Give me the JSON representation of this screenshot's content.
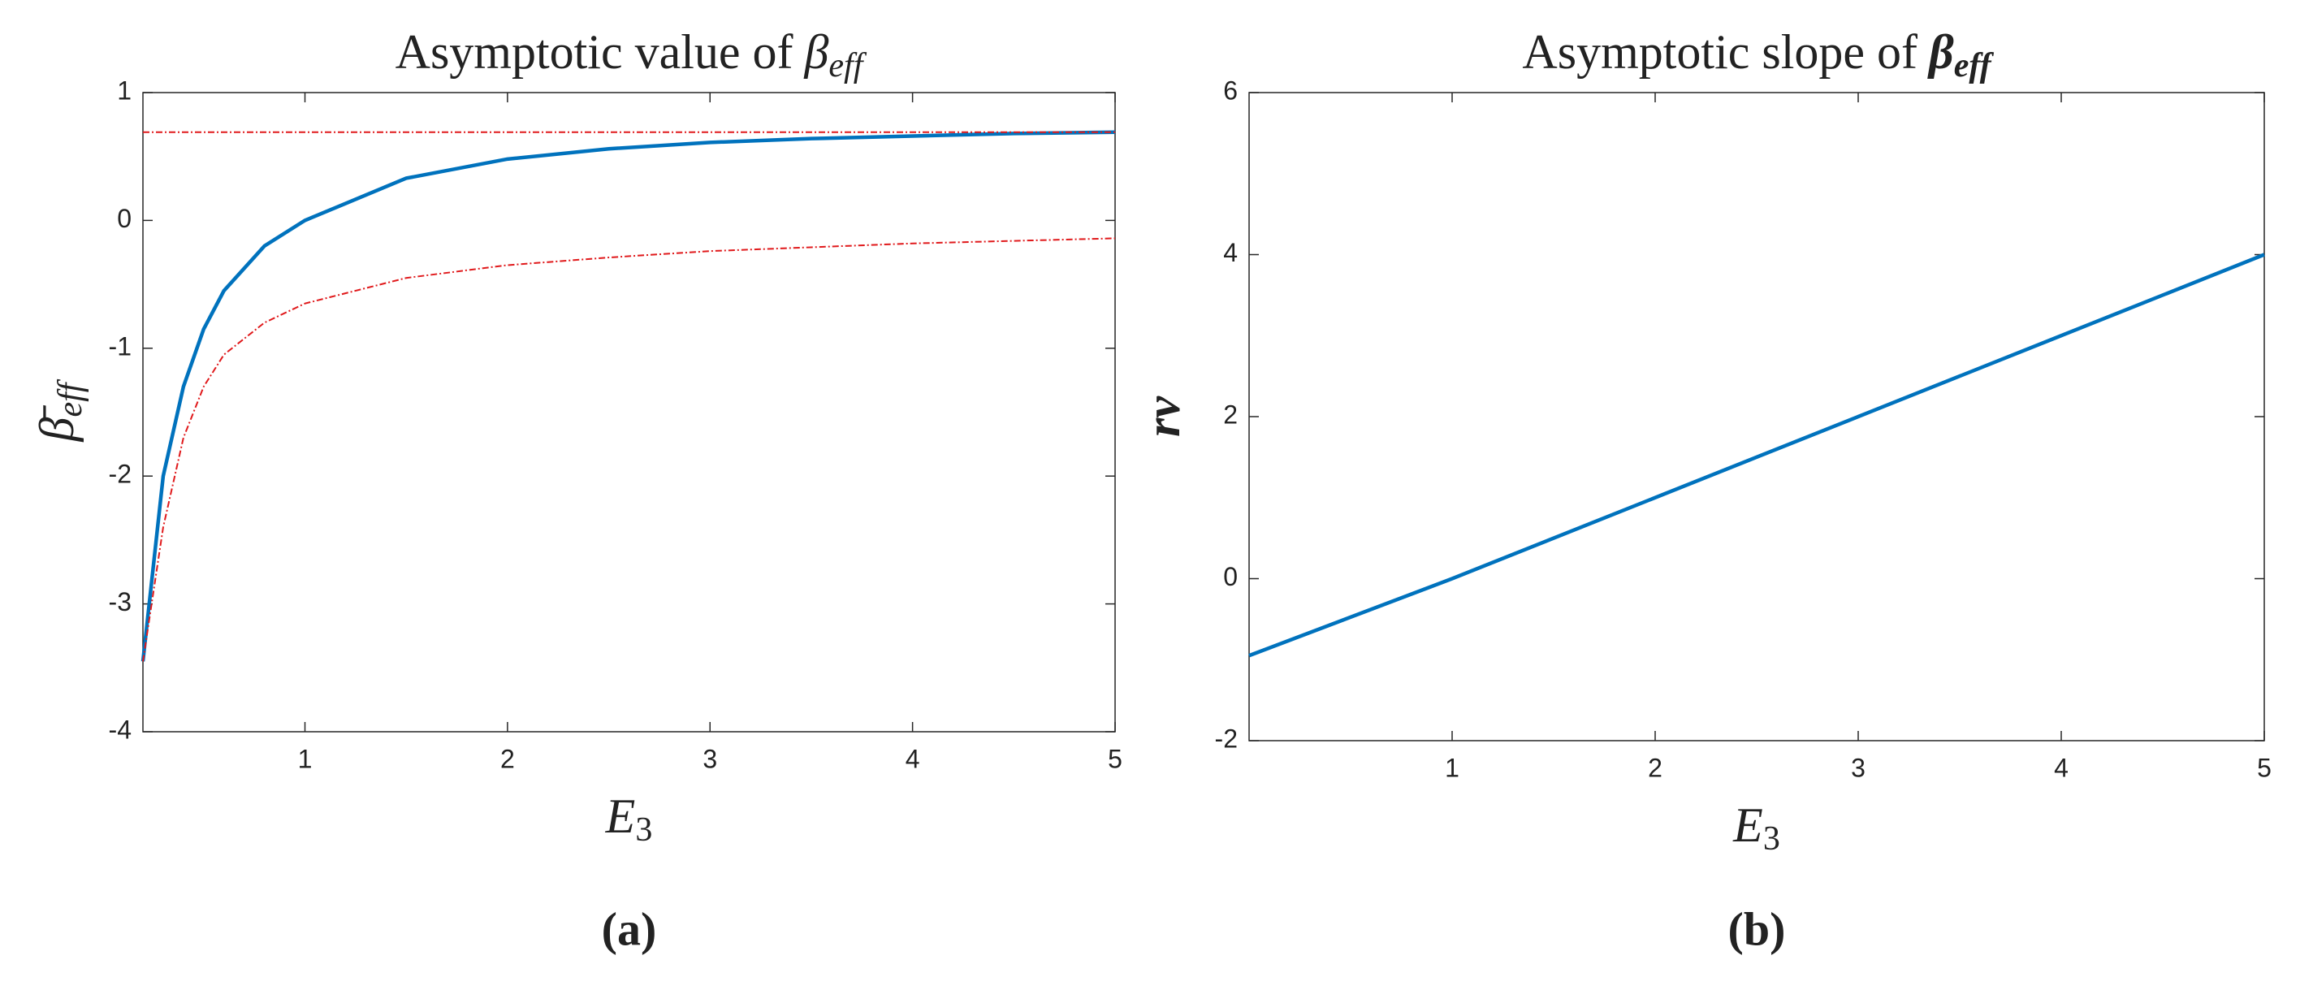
{
  "chart_data": [
    {
      "type": "line",
      "title": "Asymptotic value of",
      "title_symbol": "β",
      "title_subscript": "eff",
      "xlabel": "E",
      "xlabel_subscript": "3",
      "ylabel": "β̄",
      "ylabel_subscript": "eff",
      "caption": "(a)",
      "x": [
        0.2,
        0.3,
        0.4,
        0.5,
        0.6,
        0.8,
        1,
        1.5,
        2,
        2.5,
        3,
        3.5,
        4,
        4.5,
        5
      ],
      "series": [
        {
          "color": "#0072bd",
          "style": "solid",
          "values": [
            -3.45,
            -2.0,
            -1.3,
            -0.85,
            -0.55,
            -0.2,
            0,
            0.33,
            0.48,
            0.56,
            0.61,
            0.64,
            0.66,
            0.68,
            0.69
          ]
        },
        {
          "color": "#e0191b",
          "style": "dashed",
          "values": [
            0.69,
            0.69,
            0.69,
            0.69,
            0.69,
            0.69,
            0.69,
            0.69,
            0.69,
            0.69,
            0.69,
            0.69,
            0.69,
            0.69,
            0.69
          ]
        },
        {
          "color": "#e0191b",
          "style": "dashed",
          "values": [
            -3.45,
            -2.4,
            -1.7,
            -1.3,
            -1.05,
            -0.8,
            -0.65,
            -0.45,
            -0.35,
            -0.29,
            -0.24,
            -0.21,
            -0.18,
            -0.16,
            -0.14
          ]
        }
      ],
      "xlim": [
        0.2,
        5
      ],
      "xticks": [
        1,
        2,
        3,
        4,
        5
      ],
      "ylim": [
        -4,
        1
      ],
      "yticks": [
        -4,
        -3,
        -2,
        -1,
        0,
        1
      ]
    },
    {
      "type": "line",
      "title": "Asymptotic slope of",
      "title_symbol": "β",
      "title_subscript": "eff",
      "xlabel": "E",
      "xlabel_subscript": "3",
      "ylabel": "rv",
      "caption": "(b)",
      "x": [
        0,
        1,
        2,
        3,
        4,
        5
      ],
      "series": [
        {
          "color": "#0072bd",
          "style": "solid",
          "values": [
            -0.95,
            0,
            1,
            2,
            3,
            4
          ]
        }
      ],
      "xlim": [
        0,
        5
      ],
      "xticks": [
        1,
        2,
        3,
        4,
        5
      ],
      "ylim": [
        -2,
        6
      ],
      "yticks": [
        -2,
        0,
        2,
        4,
        6
      ]
    }
  ]
}
